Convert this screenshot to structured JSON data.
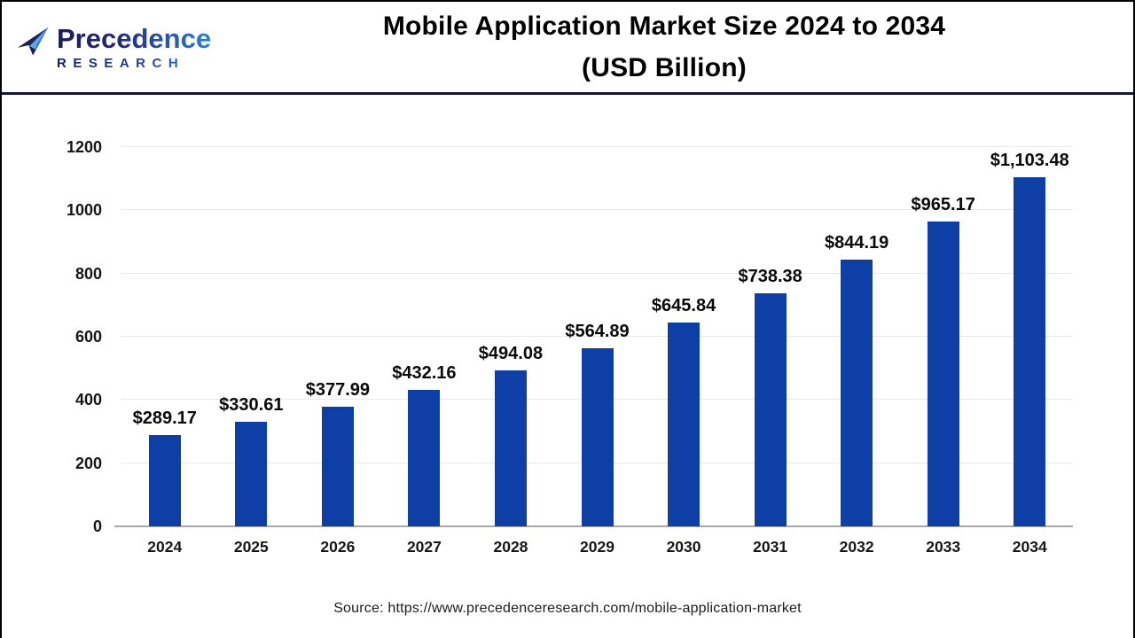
{
  "header": {
    "logo": {
      "name": "Precedence",
      "subname": "RESEARCH",
      "icon": "paper-plane-icon"
    },
    "title_line1": "Mobile Application Market Size 2024 to 2034",
    "title_line2": "(USD Billion)"
  },
  "footer": {
    "source": "Source: https://www.precedenceresearch.com/mobile-application-market"
  },
  "chart_data": {
    "type": "bar",
    "title": "Mobile Application Market Size 2024 to 2034 (USD Billion)",
    "categories": [
      "2024",
      "2025",
      "2026",
      "2027",
      "2028",
      "2029",
      "2030",
      "2031",
      "2032",
      "2033",
      "2034"
    ],
    "values": [
      289.17,
      330.61,
      377.99,
      432.16,
      494.08,
      564.89,
      645.84,
      738.38,
      844.19,
      965.17,
      1103.48
    ],
    "value_labels": [
      "$289.17",
      "$330.61",
      "$377.99",
      "$432.16",
      "$494.08",
      "$564.89",
      "$645.84",
      "$738.38",
      "$844.19",
      "$965.17",
      "$1,103.48"
    ],
    "xlabel": "",
    "ylabel": "",
    "ylim": [
      0,
      1200
    ],
    "yticks": [
      0,
      200,
      400,
      600,
      800,
      1000,
      1200
    ],
    "grid": true,
    "legend": false,
    "bar_color": "#0d3fa6",
    "gridline_color": "#e8e8e8",
    "baseline_color": "#a8a8a8",
    "divider_color": "#15153f"
  }
}
